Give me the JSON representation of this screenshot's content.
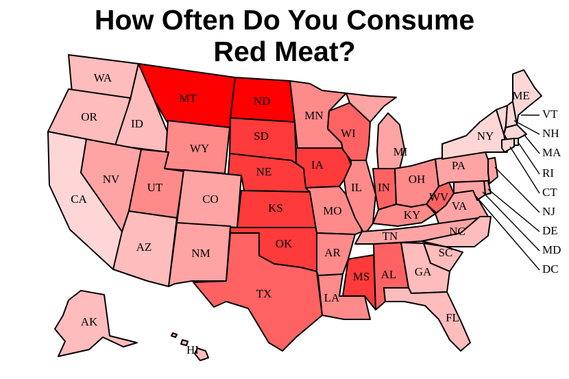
{
  "title_line1": "How Often Do You Consume",
  "title_line2": "Red Meat?",
  "colors": {
    "l1": "#ffd6d6",
    "l2": "#ffbcbc",
    "l3": "#ffa4a4",
    "l4": "#ff8a8a",
    "l5": "#ff6262",
    "l6": "#ff3a3a",
    "l7": "#ff0000"
  },
  "states": {
    "WA": "WA",
    "OR": "OR",
    "CA": "CA",
    "ID": "ID",
    "NV": "NV",
    "MT": "MT",
    "WY": "WY",
    "UT": "UT",
    "AZ": "AZ",
    "CO": "CO",
    "NM": "NM",
    "ND": "ND",
    "SD": "SD",
    "NE": "NE",
    "KS": "KS",
    "OK": "OK",
    "TX": "TX",
    "MN": "MN",
    "IA": "IA",
    "MO": "MO",
    "AR": "AR",
    "LA": "LA",
    "WI": "WI",
    "IL": "IL",
    "MS": "MS",
    "MI": "MI",
    "IN": "IN",
    "KY": "KY",
    "TN": "TN",
    "AL": "AL",
    "OH": "OH",
    "WV": "WV",
    "VA": "VA",
    "NC": "NC",
    "SC": "SC",
    "GA": "GA",
    "FL": "FL",
    "PA": "PA",
    "NY": "NY",
    "ME": "ME",
    "VT": "VT",
    "NH": "NH",
    "MA": "MA",
    "RI": "RI",
    "CT": "CT",
    "NJ": "NJ",
    "DE": "DE",
    "MD": "MD",
    "DC": "DC",
    "AK": "AK",
    "HI": "HI"
  }
}
